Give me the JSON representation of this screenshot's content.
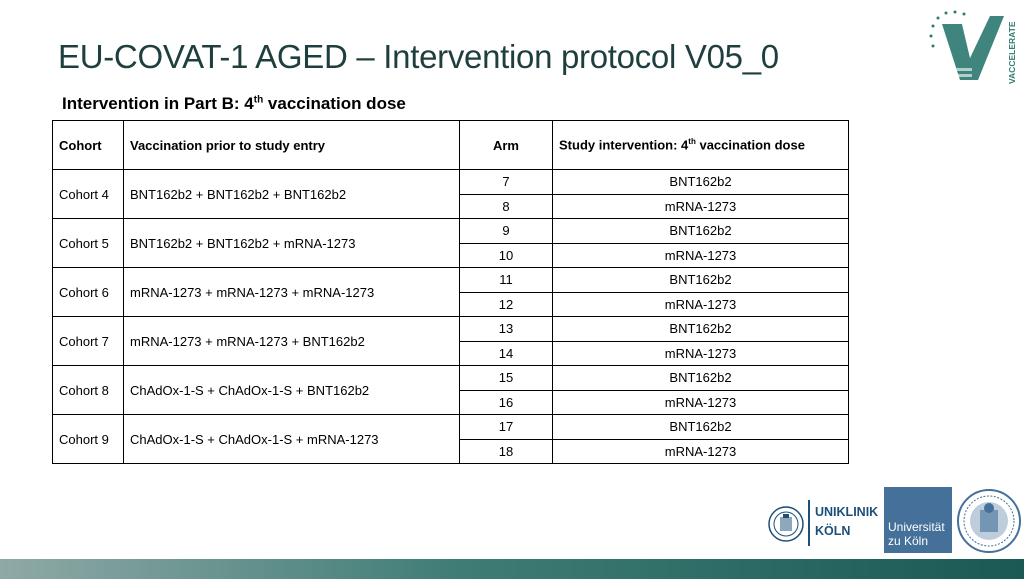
{
  "slide": {
    "title": "EU-COVAT-1 AGED – Intervention protocol V05_0",
    "subtitle_prefix": "Intervention in Part B: 4",
    "subtitle_sup": "th",
    "subtitle_suffix": " vaccination dose"
  },
  "logos": {
    "top_right_text": "VACCELERATE",
    "uniklinik_line1": "UNIKLINIK",
    "uniklinik_line2": "KÖLN",
    "universitaet_line1": "Universität",
    "universitaet_line2": "zu Köln"
  },
  "table": {
    "headers": {
      "cohort": "Cohort",
      "prior": "Vaccination prior to study entry",
      "arm": "Arm",
      "intervention_prefix": "Study intervention:  4",
      "intervention_sup": "th",
      "intervention_suffix": " vaccination dose"
    },
    "cohorts": [
      {
        "name": "Cohort 4",
        "prior": "BNT162b2 +  BNT162b2 + BNT162b2",
        "arms": [
          {
            "arm": "7",
            "dose": "BNT162b2"
          },
          {
            "arm": "8",
            "dose": "mRNA-1273"
          }
        ]
      },
      {
        "name": "Cohort 5",
        "prior": "BNT162b2 +  BNT162b2 + mRNA-1273",
        "arms": [
          {
            "arm": "9",
            "dose": "BNT162b2"
          },
          {
            "arm": "10",
            "dose": "mRNA-1273"
          }
        ]
      },
      {
        "name": "Cohort 6",
        "prior": "mRNA-1273 + mRNA-1273 + mRNA-1273",
        "arms": [
          {
            "arm": "11",
            "dose": "BNT162b2"
          },
          {
            "arm": "12",
            "dose": "mRNA-1273"
          }
        ]
      },
      {
        "name": "Cohort 7",
        "prior": "mRNA-1273 + mRNA-1273 + BNT162b2",
        "arms": [
          {
            "arm": "13",
            "dose": "BNT162b2"
          },
          {
            "arm": "14",
            "dose": "mRNA-1273"
          }
        ]
      },
      {
        "name": "Cohort 8",
        "prior": "ChAdOx-1-S + ChAdOx-1-S + BNT162b2",
        "arms": [
          {
            "arm": "15",
            "dose": "BNT162b2"
          },
          {
            "arm": "16",
            "dose": "mRNA-1273"
          }
        ]
      },
      {
        "name": "Cohort 9",
        "prior": "ChAdOx-1-S + ChAdOx-1-S + mRNA-1273",
        "arms": [
          {
            "arm": "17",
            "dose": "BNT162b2"
          },
          {
            "arm": "18",
            "dose": "mRNA-1273"
          }
        ]
      }
    ]
  },
  "colors": {
    "title": "#1f3f3e",
    "accent": "#2f7a72",
    "uni_blue": "#44709a"
  }
}
